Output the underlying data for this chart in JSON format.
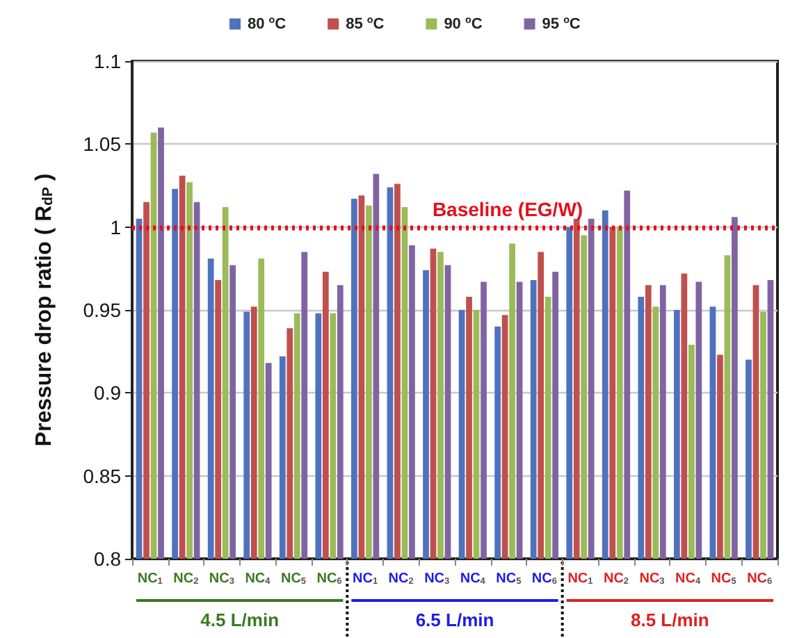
{
  "chart_data": {
    "type": "bar",
    "ylabel": "Pressure drop ratio ( R$_{dP}$ )",
    "categories": [
      "NC$_{1}$",
      "NC$_{2}$",
      "NC$_{3}$",
      "NC$_{4}$",
      "NC$_{5}$",
      "NC$_{6}$",
      "NC$_{1}$",
      "NC$_{2}$",
      "NC$_{3}$",
      "NC$_{4}$",
      "NC$_{5}$",
      "NC$_{6}$",
      "NC$_{1}$",
      "NC$_{2}$",
      "NC$_{3}$",
      "NC$_{4}$",
      "NC$_{5}$",
      "NC$_{6}$"
    ],
    "series": [
      {
        "name": "80 $^{o}$C",
        "color": "#4f72be",
        "values": [
          1.005,
          1.023,
          0.981,
          0.949,
          0.922,
          0.948,
          1.017,
          1.024,
          0.974,
          0.95,
          0.94,
          0.968,
          1.0,
          1.01,
          0.958,
          0.95,
          0.952,
          0.92
        ]
      },
      {
        "name": "85 $^{o}$C",
        "color": "#c0504d",
        "values": [
          1.015,
          1.031,
          0.968,
          0.952,
          0.939,
          0.973,
          1.019,
          1.026,
          0.987,
          0.958,
          0.947,
          0.985,
          1.005,
          1.0,
          0.965,
          0.972,
          0.923,
          0.965
        ]
      },
      {
        "name": "90 $^{o}$C",
        "color": "#9bbb59",
        "values": [
          1.057,
          1.027,
          1.012,
          0.981,
          0.948,
          0.948,
          1.013,
          1.012,
          0.985,
          0.95,
          0.99,
          0.958,
          0.995,
          1.0,
          0.952,
          0.929,
          0.983,
          0.949
        ]
      },
      {
        "name": "95 $^{o}$C",
        "color": "#8064a2",
        "values": [
          1.06,
          1.015,
          0.977,
          0.918,
          0.985,
          0.965,
          1.032,
          0.989,
          0.977,
          0.967,
          0.967,
          0.973,
          1.005,
          1.022,
          0.965,
          0.967,
          1.006,
          0.968
        ]
      }
    ],
    "ylim": [
      0.8,
      1.1
    ],
    "yticks": [
      0.8,
      0.85,
      0.9,
      0.95,
      1,
      1.05,
      1.1
    ],
    "grid": "y",
    "legend": "top",
    "ref_lines": [
      {
        "axis": "y",
        "value": 1,
        "label": "Baseline (EG/W)",
        "color": "#e3101c",
        "line_style": "dotted"
      }
    ],
    "annotations": [
      "4.5 L/min",
      "6.5 L/min",
      "8.5 L/min"
    ]
  }
}
